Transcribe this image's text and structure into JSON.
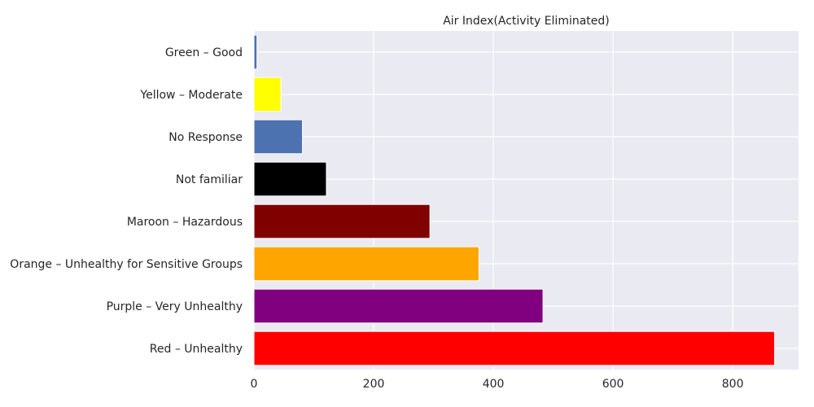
{
  "chart_data": {
    "type": "bar",
    "orientation": "horizontal",
    "title": "Air Index(Activity Eliminated)",
    "xlabel": "",
    "ylabel": "",
    "categories": [
      "Red – Unhealthy",
      "Purple – Very Unhealthy",
      "Orange – Unhealthy for Sensitive Groups",
      "Maroon – Hazardous",
      "Not familiar",
      "No Response",
      "Yellow – Moderate",
      "Green – Good"
    ],
    "values": [
      870,
      483,
      376,
      294,
      121,
      81,
      45,
      5
    ],
    "colors": [
      "#ff0000",
      "#800080",
      "#ffa500",
      "#800000",
      "#000000",
      "#4c72b0",
      "#ffff00",
      "#4c72b0"
    ],
    "xlim": [
      0,
      910
    ],
    "xticks": [
      0,
      200,
      400,
      600,
      800
    ],
    "grid": true,
    "background": "#eaeaf2"
  }
}
